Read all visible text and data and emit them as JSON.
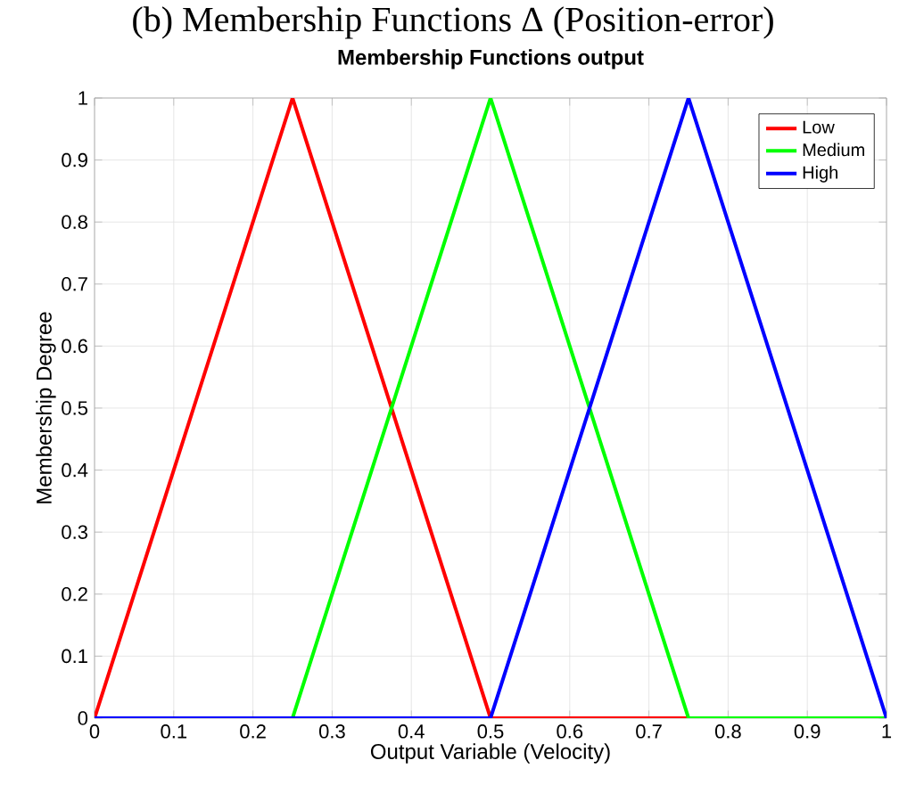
{
  "chart_data": {
    "type": "line",
    "title": "(b) Membership Functions Δ (Position-error)",
    "subtitle": "Membership Functions output",
    "xlabel": "Output Variable (Velocity)",
    "ylabel": "Membership Degree",
    "xlim": [
      0,
      1
    ],
    "ylim": [
      0,
      1
    ],
    "xticks": [
      0,
      0.1,
      0.2,
      0.3,
      0.4,
      0.5,
      0.6,
      0.7,
      0.8,
      0.9,
      1
    ],
    "yticks": [
      0,
      0.1,
      0.2,
      0.3,
      0.4,
      0.5,
      0.6,
      0.7,
      0.8,
      0.9,
      1
    ],
    "grid": true,
    "legend": "top right",
    "line_style": "solid",
    "marker": "none",
    "series": [
      {
        "name": "Low",
        "color": "#ff0000",
        "x": [
          0,
          0.25,
          0.5,
          0.75
        ],
        "values": [
          0,
          1,
          0,
          0
        ]
      },
      {
        "name": "Medium",
        "color": "#00ff00",
        "x": [
          0,
          0.25,
          0.5,
          0.75,
          1
        ],
        "values": [
          0,
          0,
          1,
          0,
          0
        ]
      },
      {
        "name": "High",
        "color": "#0000ff",
        "x": [
          0,
          0.5,
          0.75,
          1
        ],
        "values": [
          0,
          0,
          1,
          0
        ]
      }
    ]
  }
}
